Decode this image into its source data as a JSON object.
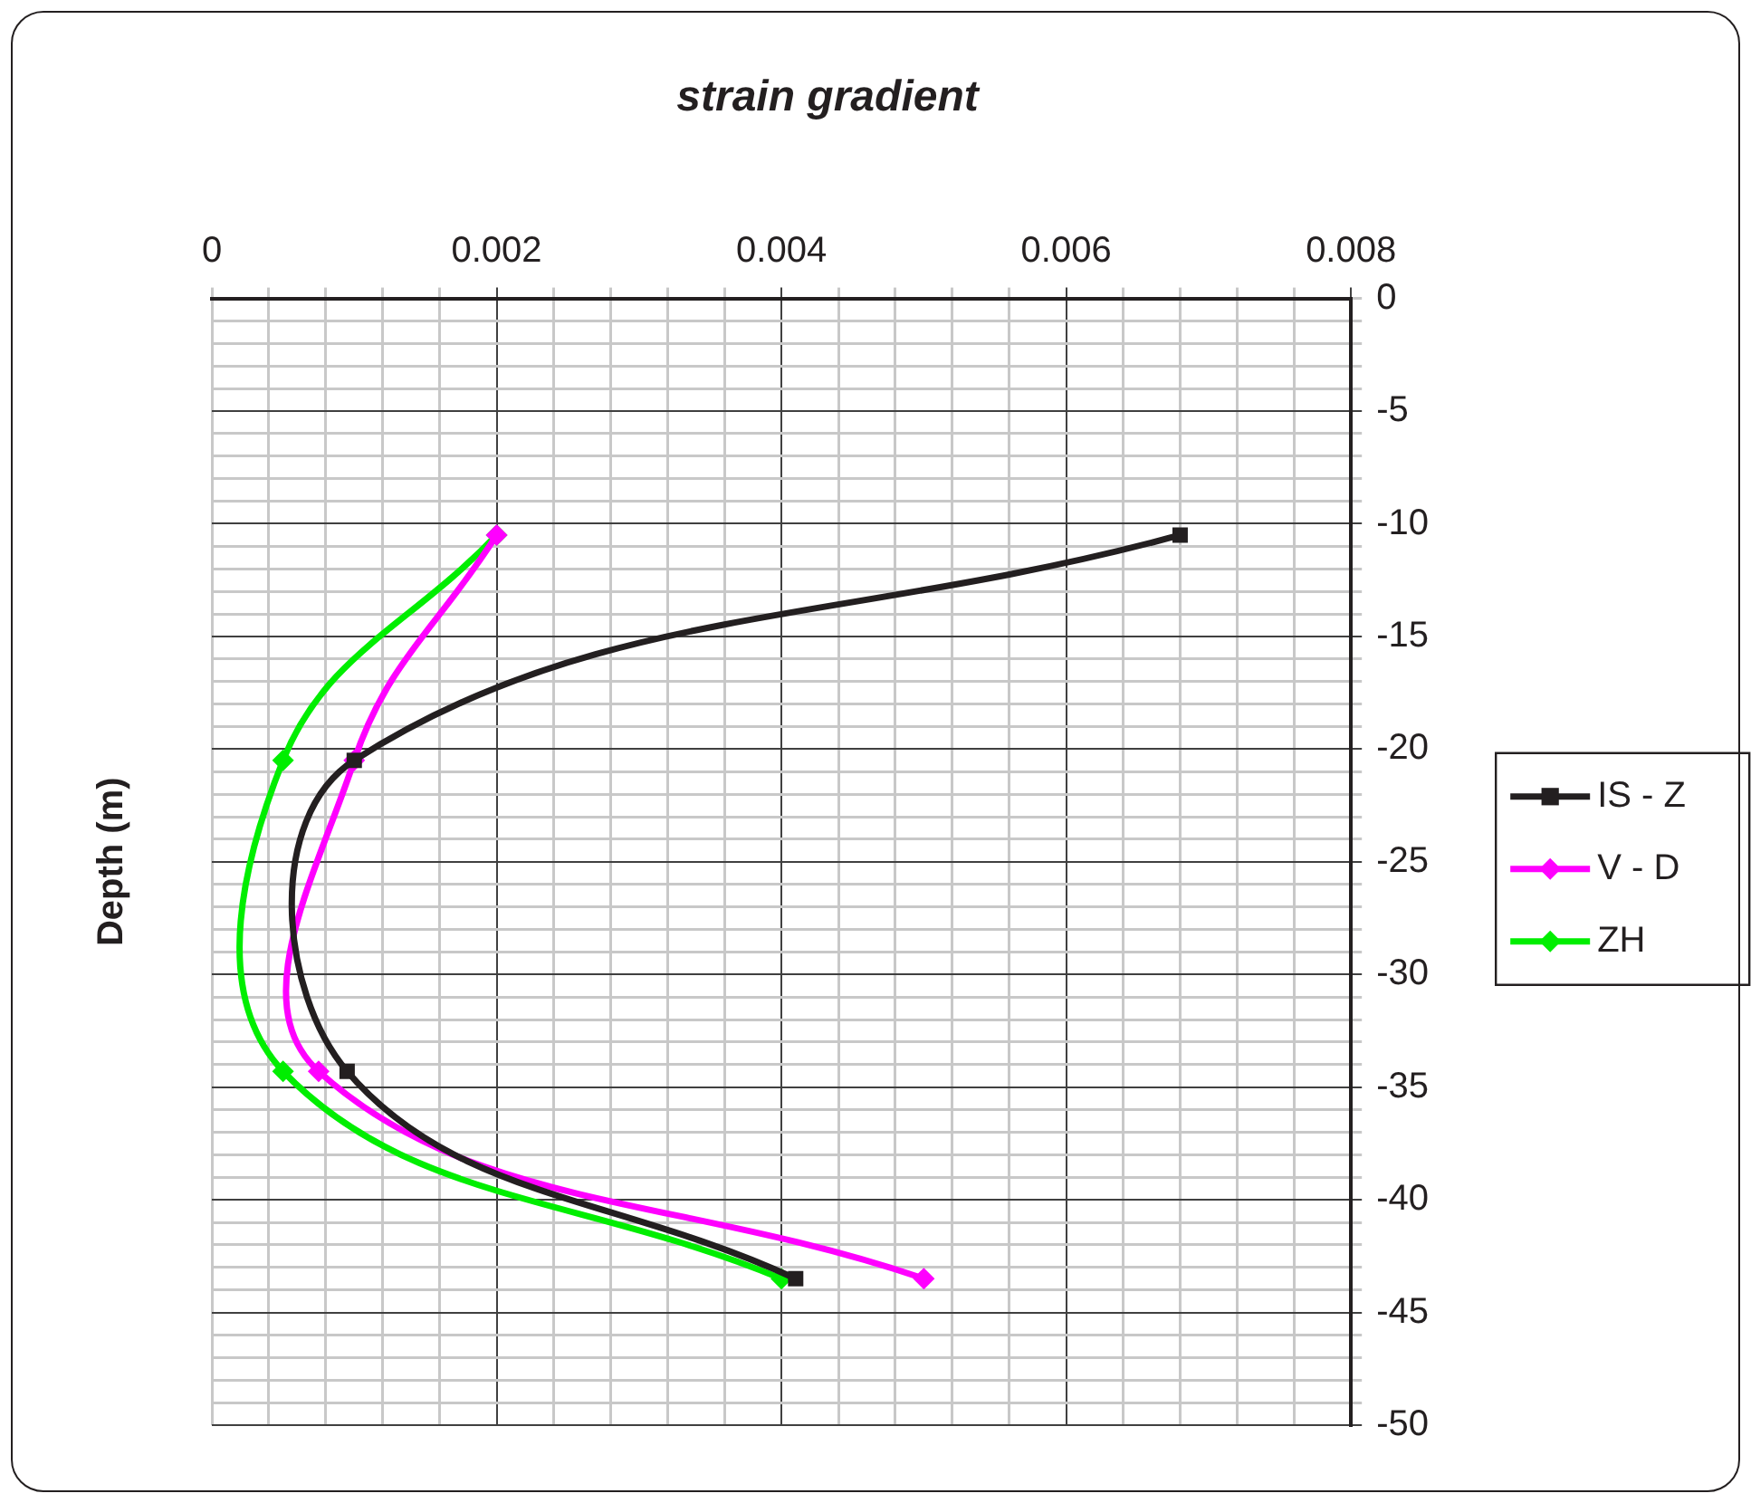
{
  "chart_data": {
    "type": "line",
    "title": "strain gradient",
    "ylabel": "Depth (m)",
    "xlim": [
      0,
      0.008
    ],
    "xticks": [
      0,
      {
        "value": 0.0004,
        "label": null
      },
      {
        "value": 0.0008,
        "label": null
      },
      {
        "value": 0.0012,
        "label": null
      },
      {
        "value": 0.0016,
        "label": null
      },
      0.002,
      {
        "value": 0.0024,
        "label": null
      },
      {
        "value": 0.0028,
        "label": null
      },
      {
        "value": 0.0032,
        "label": null
      },
      {
        "value": 0.0036,
        "label": null
      },
      0.004,
      {
        "value": 0.0044,
        "label": null
      },
      {
        "value": 0.0048,
        "label": null
      },
      {
        "value": 0.0052,
        "label": null
      },
      {
        "value": 0.0056,
        "label": null
      },
      0.006,
      {
        "value": 0.0064,
        "label": null
      },
      {
        "value": 0.0068,
        "label": null
      },
      {
        "value": 0.0072,
        "label": null
      },
      {
        "value": 0.0076,
        "label": null
      },
      0.008
    ],
    "ylim": [
      -50,
      0
    ],
    "yticks": [
      0,
      {
        "value": -1,
        "label": null
      },
      {
        "value": -2,
        "label": null
      },
      {
        "value": -3,
        "label": null
      },
      {
        "value": -4,
        "label": null
      },
      -5,
      {
        "value": -6,
        "label": null
      },
      {
        "value": -7,
        "label": null
      },
      {
        "value": -8,
        "label": null
      },
      {
        "value": -9,
        "label": null
      },
      -10,
      {
        "value": -11,
        "label": null
      },
      {
        "value": -12,
        "label": null
      },
      {
        "value": -13,
        "label": null
      },
      {
        "value": -14,
        "label": null
      },
      -15,
      {
        "value": -16,
        "label": null
      },
      {
        "value": -17,
        "label": null
      },
      {
        "value": -18,
        "label": null
      },
      {
        "value": -19,
        "label": null
      },
      -20,
      {
        "value": -21,
        "label": null
      },
      {
        "value": -22,
        "label": null
      },
      {
        "value": -23,
        "label": null
      },
      {
        "value": -24,
        "label": null
      },
      -25,
      {
        "value": -26,
        "label": null
      },
      {
        "value": -27,
        "label": null
      },
      {
        "value": -28,
        "label": null
      },
      {
        "value": -29,
        "label": null
      },
      -30,
      {
        "value": -31,
        "label": null
      },
      {
        "value": -32,
        "label": null
      },
      {
        "value": -33,
        "label": null
      },
      {
        "value": -34,
        "label": null
      },
      -35,
      {
        "value": -36,
        "label": null
      },
      {
        "value": -37,
        "label": null
      },
      {
        "value": -38,
        "label": null
      },
      {
        "value": -39,
        "label": null
      },
      -40,
      {
        "value": -41,
        "label": null
      },
      {
        "value": -42,
        "label": null
      },
      {
        "value": -43,
        "label": null
      },
      {
        "value": -44,
        "label": null
      },
      -45,
      {
        "value": -46,
        "label": null
      },
      {
        "value": -47,
        "label": null
      },
      {
        "value": -48,
        "label": null
      },
      {
        "value": -49,
        "label": null
      },
      -50
    ],
    "grid": true,
    "legend": "right",
    "series": [
      {
        "name": "IS - Z",
        "color": "#231f20",
        "marker": "square",
        "x": [
          0.0068,
          0.001,
          0.00095,
          0.0041
        ],
        "values": [
          -10.5,
          -20.5,
          -34.3,
          -43.5
        ]
      },
      {
        "name": "V - D",
        "color": "#ff00ff",
        "marker": "diamond",
        "x": [
          0.002,
          0.001,
          0.00075,
          0.005
        ],
        "values": [
          -10.5,
          -20.5,
          -34.3,
          -43.5
        ]
      },
      {
        "name": "ZH",
        "color": "#00ee00",
        "marker": "diamond",
        "x": [
          0.002,
          0.0005,
          0.0005,
          0.004
        ],
        "values": [
          -10.5,
          -20.5,
          -34.3,
          -43.5
        ]
      }
    ]
  }
}
